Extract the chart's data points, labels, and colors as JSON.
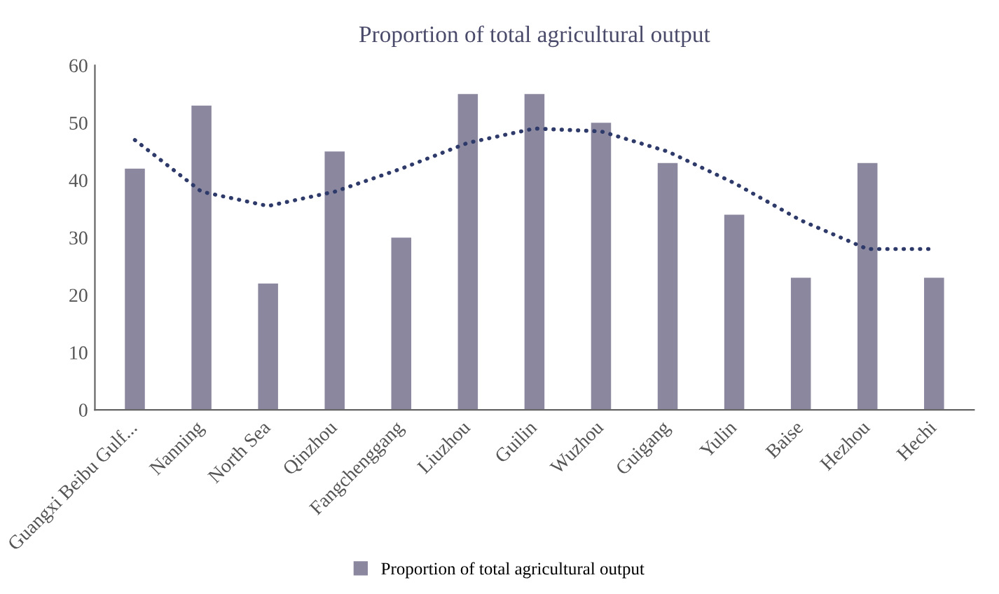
{
  "chart_data": {
    "type": "bar",
    "title": "Proportion of total agricultural output",
    "categories": [
      "Guangxi Beibu Gulf...",
      "Nanning",
      "North Sea",
      "Qinzhou",
      "Fangchenggang",
      "Liuzhou",
      "Guilin",
      "Wuzhou",
      "Guigang",
      "Yulin",
      "Baise",
      "Hezhou",
      "Hechi"
    ],
    "series": [
      {
        "name": "Proportion of total agricultural output",
        "color": "#8a879f",
        "values": [
          42,
          53,
          22,
          45,
          30,
          55,
          55,
          50,
          43,
          34,
          23,
          43,
          23
        ]
      },
      {
        "type": "line",
        "color": "#2e3a6a",
        "line_style": "dotted",
        "values": [
          47,
          38,
          35.5,
          38,
          42,
          46.5,
          49,
          48.5,
          45,
          39.5,
          33,
          28,
          28
        ]
      }
    ],
    "ylim": [
      0,
      60
    ],
    "yticks": [
      0,
      10,
      20,
      30,
      40,
      50,
      60
    ],
    "grid": false,
    "legend": "bottom"
  }
}
